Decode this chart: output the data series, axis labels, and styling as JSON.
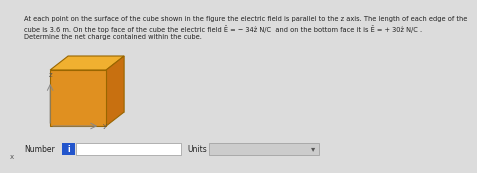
{
  "bg_color": "#dcdcdc",
  "text_color": "#222222",
  "title_lines": [
    "At each point on the surface of the cube shown in the figure the electric field is parallel to the z axis. The length of each edge of the",
    "cube is 3.6 m. On the top face of the cube the electric field Ē = − 34ẑ N/C  and on the bottom face it is Ē = + 30ẑ N/C .",
    "Determine the net charge contained within the cube."
  ],
  "number_label": "Number",
  "units_label": "Units",
  "info_button_color": "#2255cc",
  "info_button_text": "i",
  "cube_top_color": "#f0b030",
  "cube_front_color": "#e09020",
  "cube_right_color": "#c87010",
  "cube_edge_color": "#996600",
  "axis_color": "#888888",
  "axis_label_color": "#555555",
  "axis_labels": [
    "x",
    "y",
    "z"
  ],
  "input_bg": "#ffffff",
  "dropdown_bg": "#cccccc",
  "border_color": "#999999"
}
